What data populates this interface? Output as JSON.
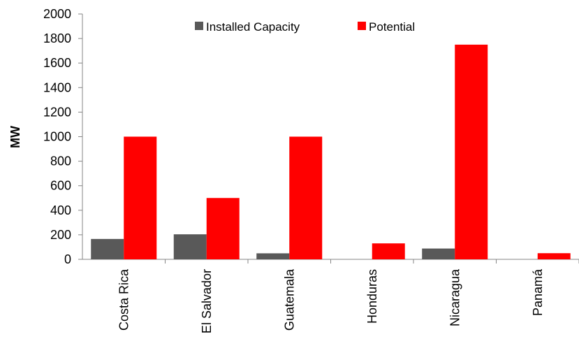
{
  "chart_data": {
    "type": "bar",
    "title": "",
    "xlabel": "",
    "ylabel": "MW",
    "ylim": [
      0,
      2000
    ],
    "ytick_step": 200,
    "grid": false,
    "legend_position": "top-center",
    "categories": [
      "Costa Rica",
      "El Salvador",
      "Guatemala",
      "Honduras",
      "Nicaragua",
      "Panamá"
    ],
    "series": [
      {
        "name": "Installed Capacity",
        "color": "#595959",
        "values": [
          166,
          204,
          49,
          0,
          88,
          0
        ]
      },
      {
        "name": "Potential",
        "color": "#ff0000",
        "values": [
          1000,
          500,
          1000,
          130,
          1750,
          50
        ]
      }
    ]
  }
}
